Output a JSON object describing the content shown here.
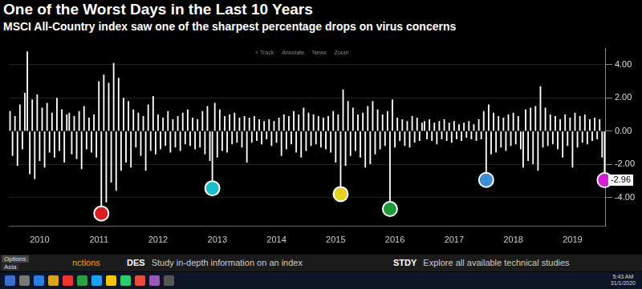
{
  "chart_data": {
    "type": "bar",
    "title": "One of the Worst Days in the Last 10 Years",
    "subtitle": "MSCI All-Country index saw one of the sharpest percentage drops on virus concerns",
    "categories": [
      null,
      null,
      null,
      null,
      null,
      null,
      null,
      null,
      null,
      null,
      null,
      null,
      "2010",
      null,
      null,
      null,
      null,
      null,
      null,
      null,
      null,
      null,
      null,
      null,
      null,
      null,
      null,
      null,
      null,
      null,
      null,
      null,
      null,
      null,
      null,
      null,
      "2011",
      null,
      null,
      null,
      null,
      null,
      null,
      null,
      null,
      null,
      null,
      null,
      null,
      null,
      null,
      null,
      null,
      null,
      null,
      null,
      null,
      null,
      null,
      null,
      "2012",
      null,
      null,
      null,
      null,
      null,
      null,
      null,
      null,
      null,
      null,
      null,
      null,
      null,
      null,
      null,
      null,
      null,
      null,
      null,
      null,
      null,
      null,
      null,
      "2013",
      null,
      null,
      null,
      null,
      null,
      null,
      null,
      null,
      null,
      null,
      null,
      null,
      null,
      null,
      null,
      null,
      null,
      null,
      null,
      null,
      null,
      null,
      null,
      "2014",
      null,
      null,
      null,
      null,
      null,
      null,
      null,
      null,
      null,
      null,
      null,
      null,
      null,
      null,
      null,
      null,
      null,
      null,
      null,
      null,
      null,
      null,
      null,
      "2015",
      null,
      null,
      null,
      null,
      null,
      null,
      null,
      null,
      null,
      null,
      null,
      null,
      null,
      null,
      null,
      null,
      null,
      null,
      null,
      null,
      null,
      null,
      null,
      "2016",
      null,
      null,
      null,
      null,
      null,
      null,
      null,
      null,
      null,
      null,
      null,
      null,
      null,
      null,
      null,
      null,
      null,
      null,
      null,
      null,
      null,
      null,
      null,
      "2017",
      null,
      null,
      null,
      null,
      null,
      null,
      null,
      null,
      null,
      null,
      null,
      null,
      null,
      null,
      null,
      null,
      null,
      null,
      null,
      null,
      null,
      null,
      null,
      "2018",
      null,
      null,
      null,
      null,
      null,
      null,
      null,
      null,
      null,
      null,
      null,
      null,
      null,
      null,
      null,
      null,
      null,
      null,
      null,
      null,
      null,
      null,
      null,
      "2019",
      null,
      null,
      null,
      null,
      null,
      null,
      null,
      null,
      null,
      null,
      null,
      null,
      null
    ],
    "values": [
      1.2,
      -1.5,
      0.9,
      -2.1,
      1.6,
      -1.1,
      2.3,
      4.8,
      -2.6,
      1.9,
      -2.9,
      2.2,
      -1.8,
      1.4,
      -2.2,
      1.7,
      -1.3,
      1.1,
      -1.6,
      2.0,
      -1.2,
      1.3,
      -1.9,
      1.0,
      1.1,
      -1.4,
      0.9,
      -1.7,
      1.2,
      -2.3,
      1.5,
      -1.1,
      0.8,
      -1.3,
      1.0,
      -1.6,
      3.0,
      -4.97,
      3.4,
      -4.3,
      2.9,
      -3.1,
      4.1,
      -3.6,
      3.2,
      -2.4,
      2.0,
      -1.9,
      1.8,
      -2.2,
      1.3,
      -1.0,
      1.1,
      -1.5,
      0.9,
      -2.4,
      1.6,
      -1.2,
      2.1,
      -1.4,
      1.0,
      -1.1,
      0.8,
      -0.9,
      1.2,
      -1.3,
      0.7,
      -1.0,
      0.9,
      -1.2,
      1.1,
      -0.8,
      1.3,
      -0.9,
      0.8,
      -1.1,
      0.7,
      -1.0,
      1.2,
      -1.4,
      1.5,
      -1.8,
      -3.45,
      1.7,
      -1.6,
      1.3,
      -1.2,
      0.9,
      -1.3,
      1.0,
      -0.8,
      1.1,
      -0.7,
      0.8,
      -1.0,
      0.9,
      -1.9,
      0.8,
      -0.7,
      0.9,
      -0.6,
      0.7,
      -0.8,
      0.6,
      -0.5,
      0.7,
      -0.9,
      0.6,
      -0.7,
      0.8,
      -1.5,
      1.0,
      -1.1,
      0.9,
      -0.8,
      1.2,
      -1.3,
      1.0,
      -1.6,
      1.4,
      -1.2,
      1.1,
      -0.9,
      1.0,
      -0.8,
      0.9,
      -1.0,
      0.8,
      -1.1,
      0.9,
      -1.3,
      1.2,
      -1.9,
      1.0,
      -3.8,
      2.5,
      -2.1,
      1.8,
      -1.5,
      1.4,
      -1.2,
      1.0,
      -1.6,
      1.1,
      -2.2,
      1.5,
      -2.0,
      1.8,
      -1.4,
      1.3,
      -1.1,
      1.0,
      -0.9,
      1.2,
      -4.7,
      1.9,
      -1.0,
      0.8,
      -0.6,
      0.7,
      -0.9,
      0.6,
      -1.0,
      0.9,
      -0.7,
      0.8,
      -0.6,
      0.5,
      0.6,
      -0.5,
      0.7,
      -0.6,
      0.5,
      -0.8,
      0.6,
      -0.5,
      0.7,
      -0.6,
      0.5,
      -0.7,
      0.6,
      -0.5,
      0.4,
      -0.6,
      0.5,
      -0.4,
      0.6,
      -0.5,
      0.4,
      -0.6,
      0.7,
      -0.5,
      1.2,
      -2.95,
      1.6,
      -1.4,
      1.1,
      -1.3,
      0.9,
      -1.0,
      0.8,
      -1.2,
      1.0,
      -0.9,
      1.1,
      -0.8,
      0.9,
      -1.1,
      -2.2,
      1.3,
      -1.8,
      1.4,
      -2.0,
      1.5,
      -2.4,
      2.7,
      -1.0,
      1.4,
      -0.9,
      1.0,
      -0.8,
      0.9,
      -1.1,
      0.7,
      -1.6,
      1.0,
      -0.9,
      0.8,
      -2.2,
      1.1,
      -1.0,
      0.9,
      -0.7,
      1.0,
      -0.8,
      0.7,
      -0.6,
      0.8,
      -0.5,
      0.7,
      -1.6,
      -2.96
    ],
    "color": "#ffffff",
    "ylim": [
      -5.75,
      5.0
    ],
    "yticks": [
      {
        "value": -4,
        "label": "-4.00"
      },
      {
        "value": -2,
        "label": "-2.00"
      },
      {
        "value": 0,
        "label": "0.00"
      },
      {
        "value": 2,
        "label": "2.00"
      },
      {
        "value": 4,
        "label": "4.00"
      }
    ],
    "grid": true,
    "highlights": [
      {
        "index": 37,
        "color": "#d81e1e"
      },
      {
        "index": 82,
        "color": "#1bbccc"
      },
      {
        "index": 134,
        "color": "#e6d21c"
      },
      {
        "index": 154,
        "color": "#1f9a3a"
      },
      {
        "index": 193,
        "color": "#3a8fd8"
      },
      {
        "index": 241,
        "color": "#d41cd8"
      }
    ]
  },
  "toolbar": [
    "+ Track",
    "Annotate",
    "News",
    "Zoom"
  ],
  "footer": {
    "options": "Options",
    "region": "Asia",
    "functions": "nctions",
    "commands": [
      {
        "code": "DES",
        "text": "Study in-depth information on an index"
      },
      {
        "code": "STDY",
        "text": "Explore all available technical studies"
      }
    ]
  },
  "taskbar": {
    "time": "5:43 AM",
    "date": "31/1/2020"
  }
}
